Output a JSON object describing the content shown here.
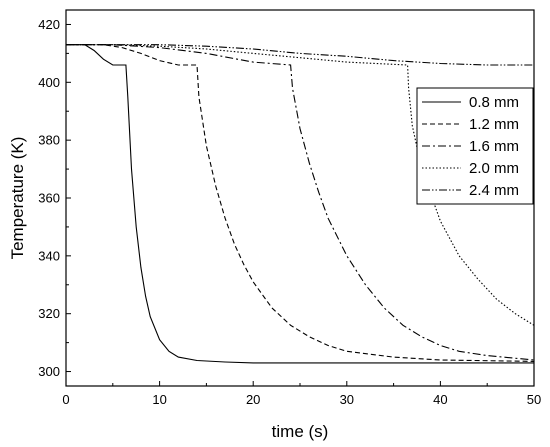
{
  "chart_data": {
    "type": "line",
    "title": "",
    "xlabel": "time (s)",
    "ylabel": "Temperature (K)",
    "xlim": [
      0,
      50
    ],
    "ylim": [
      295,
      425
    ],
    "xticks": [
      0,
      10,
      20,
      30,
      40,
      50
    ],
    "xtick_labels": [
      "0",
      "10",
      "20",
      "30",
      "40",
      "50"
    ],
    "yticks": [
      300,
      320,
      340,
      360,
      380,
      400,
      420
    ],
    "ytick_labels": [
      "300",
      "320",
      "340",
      "360",
      "380",
      "400",
      "420"
    ],
    "grid": false,
    "legend_position": "right",
    "series": [
      {
        "name": "0.8 mm",
        "dash": "solid",
        "x": [
          0,
          2,
          3,
          4,
          5,
          6,
          6.4,
          6.6,
          7,
          7.5,
          8,
          8.5,
          9,
          10,
          11,
          12,
          14,
          17,
          20,
          30,
          40,
          50
        ],
        "y": [
          413,
          413,
          411,
          408,
          406,
          406,
          406,
          395,
          370,
          350,
          336,
          326,
          319,
          311,
          307,
          305,
          303.8,
          303.3,
          303,
          303,
          303,
          303
        ]
      },
      {
        "name": "1.2 mm",
        "dash": "dashed",
        "x": [
          0,
          4,
          6,
          8,
          10,
          12,
          14,
          14.2,
          15,
          16,
          17,
          18,
          19,
          20,
          22,
          24,
          26,
          28,
          30,
          35,
          40,
          50
        ],
        "y": [
          413,
          413,
          412,
          410,
          407.5,
          406,
          406,
          395,
          378,
          364,
          353,
          344,
          337,
          331,
          322,
          316,
          312,
          309,
          307,
          305,
          304,
          303.5
        ]
      },
      {
        "name": "1.6 mm",
        "dash": "dashdot",
        "x": [
          0,
          5,
          10,
          15,
          20,
          24,
          24.2,
          25,
          26,
          27,
          28,
          30,
          32,
          34,
          36,
          38,
          40,
          42,
          45,
          50
        ],
        "y": [
          413,
          413,
          412,
          410,
          407,
          406,
          398,
          384,
          372,
          362,
          353,
          340,
          330,
          322,
          316,
          312,
          309,
          307,
          305.5,
          304
        ]
      },
      {
        "name": "2.0 mm",
        "dash": "dotted",
        "x": [
          0,
          5,
          10,
          15,
          20,
          25,
          30,
          36.5,
          36.6,
          37,
          38,
          40,
          42,
          44,
          46,
          48,
          50
        ],
        "y": [
          413,
          413,
          412.5,
          411.5,
          410,
          408.5,
          407,
          406,
          398,
          385,
          370,
          352,
          340,
          332,
          325,
          320,
          316
        ]
      },
      {
        "name": "2.4 mm",
        "dash": "dashdotdot",
        "x": [
          0,
          5,
          10,
          15,
          20,
          25,
          30,
          35,
          40,
          45,
          50
        ],
        "y": [
          413,
          413,
          413,
          412.5,
          411.5,
          410,
          409,
          407.5,
          406.5,
          406,
          406
        ]
      }
    ]
  }
}
